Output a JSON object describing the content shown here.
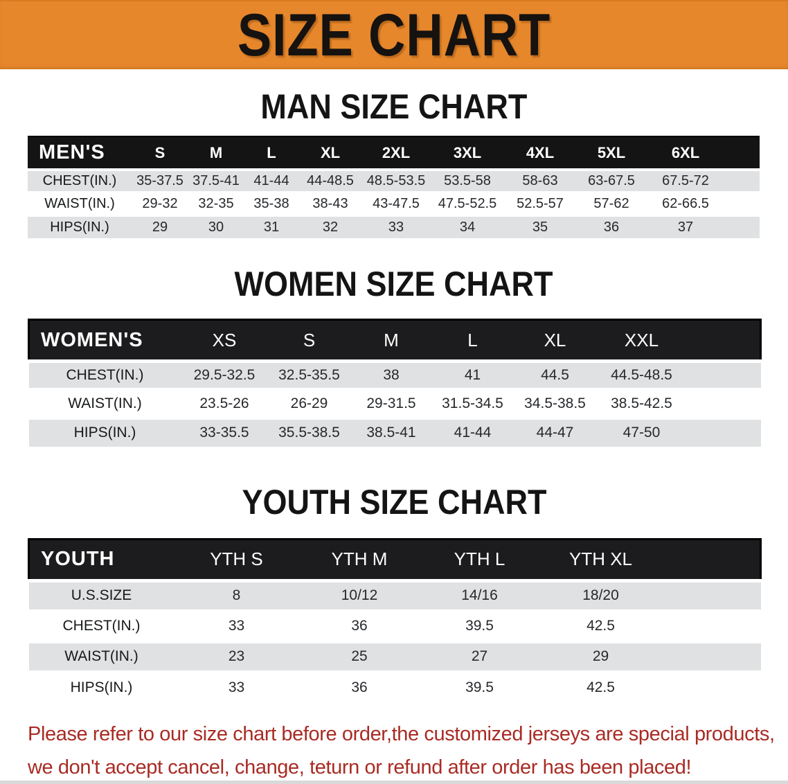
{
  "banner": {
    "title": "SIZE CHART"
  },
  "sections": [
    {
      "id": "men",
      "title": "MAN SIZE CHART",
      "corner": "MEN'S",
      "sizes": [
        "S",
        "M",
        "L",
        "XL",
        "2XL",
        "3XL",
        "4XL",
        "5XL",
        "6XL"
      ],
      "rows": [
        {
          "label": "CHEST(IN.)",
          "values": [
            "35-37.5",
            "37.5-41",
            "41-44",
            "44-48.5",
            "48.5-53.5",
            "53.5-58",
            "58-63",
            "63-67.5",
            "67.5-72"
          ]
        },
        {
          "label": "WAIST(IN.)",
          "values": [
            "29-32",
            "32-35",
            "35-38",
            "38-43",
            "43-47.5",
            "47.5-52.5",
            "52.5-57",
            "57-62",
            "62-66.5"
          ]
        },
        {
          "label": "HIPS(IN.)",
          "values": [
            "29",
            "30",
            "31",
            "32",
            "33",
            "34",
            "35",
            "36",
            "37"
          ]
        }
      ]
    },
    {
      "id": "women",
      "title": "WOMEN SIZE CHART",
      "corner": "WOMEN'S",
      "sizes": [
        "XS",
        "S",
        "M",
        "L",
        "XL",
        "XXL"
      ],
      "rows": [
        {
          "label": "CHEST(IN.)",
          "values": [
            "29.5-32.5",
            "32.5-35.5",
            "38",
            "41",
            "44.5",
            "44.5-48.5"
          ]
        },
        {
          "label": "WAIST(IN.)",
          "values": [
            "23.5-26",
            "26-29",
            "29-31.5",
            "31.5-34.5",
            "34.5-38.5",
            "38.5-42.5"
          ]
        },
        {
          "label": "HIPS(IN.)",
          "values": [
            "33-35.5",
            "35.5-38.5",
            "38.5-41",
            "41-44",
            "44-47",
            "47-50"
          ]
        }
      ]
    },
    {
      "id": "youth",
      "title": "YOUTH SIZE CHART",
      "corner": "YOUTH",
      "sizes": [
        "YTH S",
        "YTH M",
        "YTH L",
        "YTH XL"
      ],
      "rows": [
        {
          "label": "U.S.SIZE",
          "values": [
            "8",
            "10/12",
            "14/16",
            "18/20"
          ]
        },
        {
          "label": "CHEST(IN.)",
          "values": [
            "33",
            "36",
            "39.5",
            "42.5"
          ]
        },
        {
          "label": "WAIST(IN.)",
          "values": [
            "23",
            "25",
            "27",
            "29"
          ]
        },
        {
          "label": "HIPS(IN.)",
          "values": [
            "33",
            "36",
            "39.5",
            "42.5"
          ]
        }
      ]
    }
  ],
  "footer": {
    "line1": "Please refer to our size chart before order,the customized jerseys are special products,",
    "line2": "we don't accept cancel, change, teturn or refund after order has been placed!"
  },
  "colors": {
    "banner_bg": "#E6872C",
    "bar_black": "#141414",
    "row_gray": "#E0E1E2",
    "notice_red": "#A92B24"
  }
}
